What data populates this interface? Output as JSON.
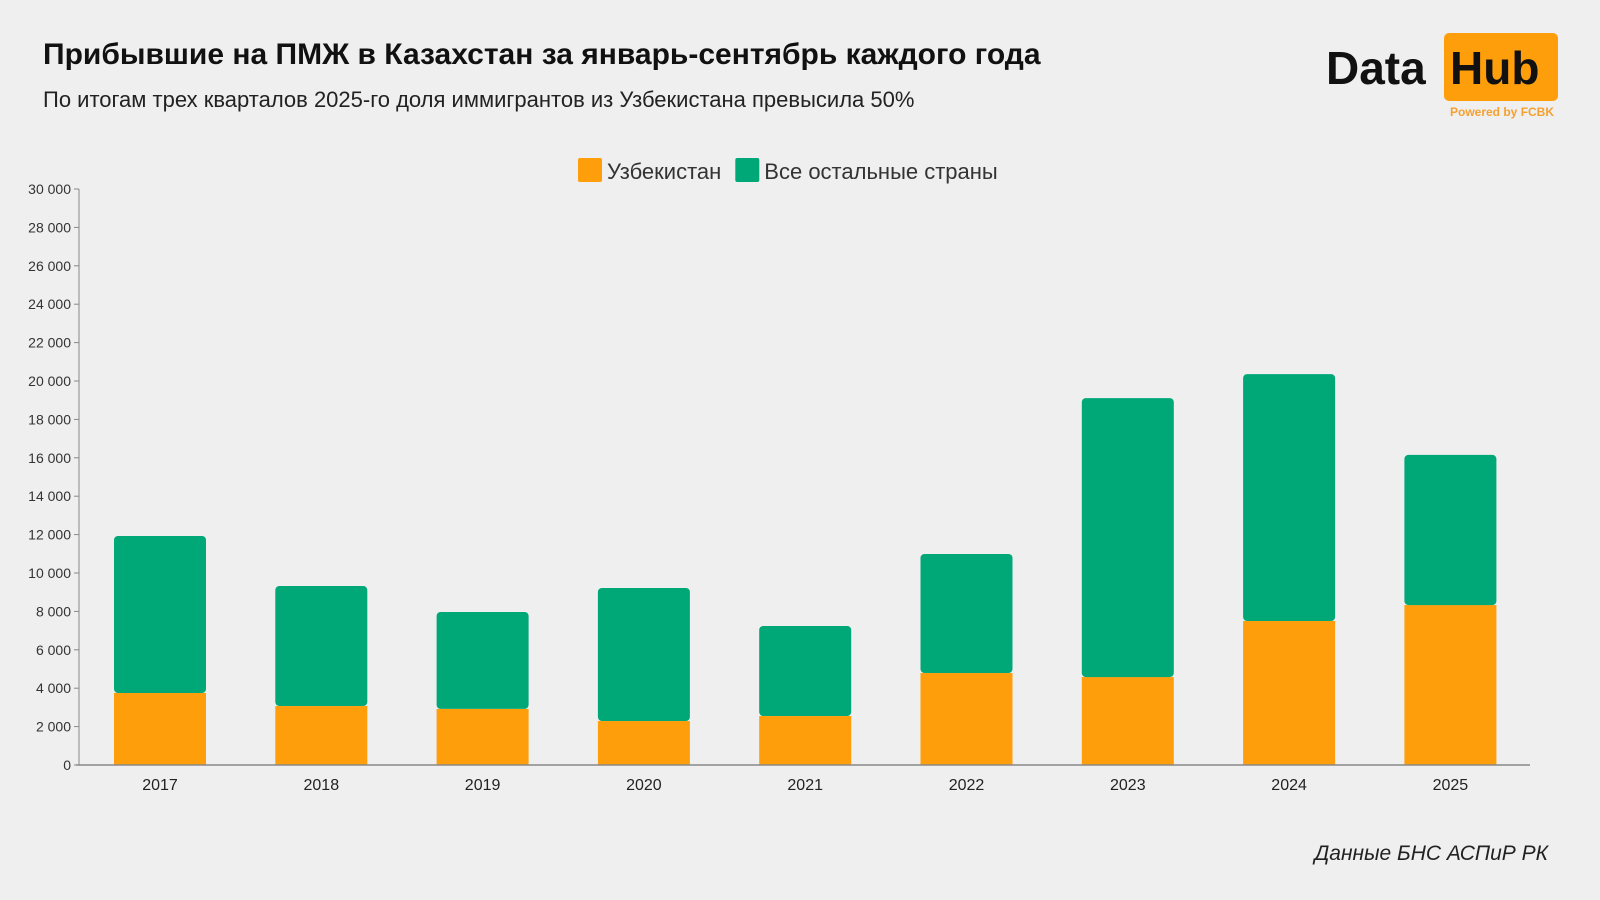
{
  "header": {
    "title": "Прибывшие на ПМЖ в Казахстан за январь-сентябрь каждого года",
    "subtitle": "По итогам трех кварталов 2025-го доля иммигрантов из Узбекистана превысила 50%"
  },
  "logo": {
    "text_left": "Data",
    "text_right": "Hub",
    "tagline": "Powered by FCBK"
  },
  "source": "Данные БНС АСПиР РК",
  "chart_data": {
    "type": "bar",
    "stacked": true,
    "categories": [
      "2017",
      "2018",
      "2019",
      "2020",
      "2021",
      "2022",
      "2023",
      "2024",
      "2025"
    ],
    "series": [
      {
        "name": "Узбекистан",
        "color": "#ff9e0b",
        "values": [
          3750,
          3070,
          2920,
          2290,
          2550,
          4790,
          4580,
          7500,
          8330
        ]
      },
      {
        "name": "Все остальные страны",
        "color": "#00a878",
        "values": [
          8180,
          6250,
          5050,
          6930,
          4690,
          6200,
          14530,
          12860,
          7820
        ]
      }
    ],
    "ylim": [
      0,
      30000
    ],
    "yticks": [
      0,
      2000,
      4000,
      6000,
      8000,
      10000,
      12000,
      14000,
      16000,
      18000,
      20000,
      22000,
      24000,
      26000,
      28000,
      30000
    ],
    "ytick_labels": [
      "0",
      "2 000",
      "4 000",
      "6 000",
      "8 000",
      "10 000",
      "12 000",
      "14 000",
      "16 000",
      "18 000",
      "20 000",
      "22 000",
      "24 000",
      "26 000",
      "28 000",
      "30 000"
    ],
    "legend_position": "top-center",
    "grid": false,
    "xlabel": "",
    "ylabel": ""
  }
}
